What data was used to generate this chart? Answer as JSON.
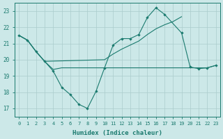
{
  "xlabel": "Humidex (Indice chaleur)",
  "bg_color": "#cce8e8",
  "line_color": "#1a7a6e",
  "grid_color": "#aacccc",
  "xlim": [
    -0.5,
    23.5
  ],
  "ylim": [
    16.5,
    23.5
  ],
  "yticks": [
    17,
    18,
    19,
    20,
    21,
    22,
    23
  ],
  "xticks": [
    0,
    1,
    2,
    3,
    4,
    5,
    6,
    7,
    8,
    9,
    10,
    11,
    12,
    13,
    14,
    15,
    16,
    17,
    18,
    19,
    20,
    21,
    22,
    23
  ],
  "line_zigzag_x": [
    0,
    1,
    2,
    3,
    4,
    5,
    6,
    7,
    8,
    9,
    10,
    11,
    12,
    13,
    14,
    15,
    16,
    17,
    19,
    20,
    21,
    22,
    23
  ],
  "line_zigzag_y": [
    21.5,
    21.2,
    20.5,
    19.9,
    19.3,
    18.3,
    17.85,
    17.25,
    17.0,
    18.05,
    19.5,
    20.9,
    21.3,
    21.3,
    21.55,
    22.6,
    23.2,
    22.8,
    21.65,
    19.55,
    19.45,
    19.5,
    19.65
  ],
  "line_flat_x": [
    0,
    1,
    2,
    3,
    4,
    5,
    6,
    7,
    8,
    9,
    10,
    11,
    12,
    13,
    14,
    15,
    16,
    17,
    18,
    19,
    20,
    21,
    22,
    23
  ],
  "line_flat_y": [
    21.5,
    21.2,
    20.5,
    19.9,
    19.4,
    19.5,
    19.5,
    19.5,
    19.5,
    19.5,
    19.5,
    19.5,
    19.5,
    19.5,
    19.5,
    19.5,
    19.5,
    19.5,
    19.5,
    19.5,
    19.5,
    19.5,
    19.5,
    19.65
  ],
  "line_trend_x": [
    0,
    1,
    2,
    3,
    10,
    11,
    12,
    13,
    14,
    15,
    16,
    17,
    18,
    19
  ],
  "line_trend_y": [
    21.5,
    21.2,
    20.5,
    19.9,
    20.0,
    20.35,
    20.65,
    20.9,
    21.15,
    21.55,
    21.9,
    22.15,
    22.35,
    22.65
  ]
}
